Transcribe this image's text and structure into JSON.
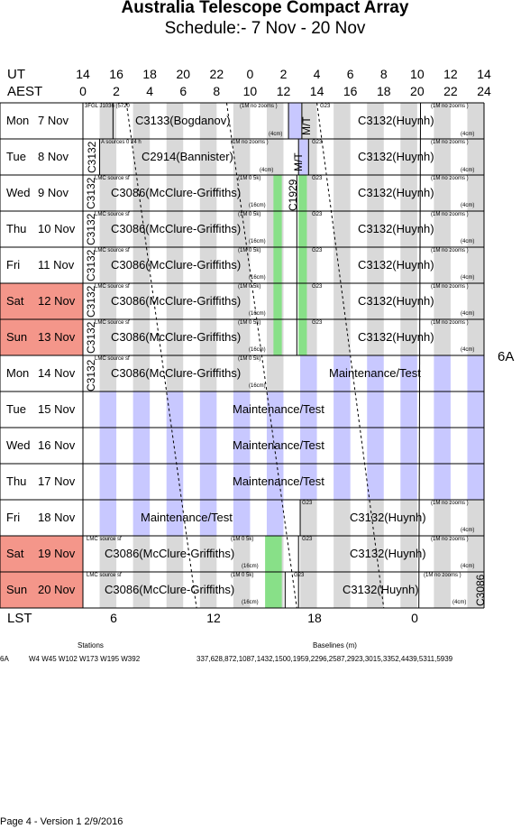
{
  "title": "Australia Telescope Compact Array",
  "subtitle": "Schedule:- 7  Nov - 20 Nov",
  "header": {
    "ut_label": "UT",
    "aest_label": "AEST",
    "ut_hours": [
      "14",
      "16",
      "18",
      "20",
      "22",
      "0",
      "2",
      "4",
      "6",
      "8",
      "10",
      "12",
      "14"
    ],
    "aest_hours": [
      "0",
      "2",
      "4",
      "6",
      "8",
      "10",
      "12",
      "14",
      "16",
      "18",
      "20",
      "22",
      "24"
    ]
  },
  "lst": {
    "label": "LST",
    "ticks": [
      "6",
      "12",
      "18",
      "0"
    ]
  },
  "config": "6A",
  "days": [
    {
      "name": "Mon",
      "date": "7 Nov",
      "weekend": false
    },
    {
      "name": "Tue",
      "date": "8 Nov",
      "weekend": false
    },
    {
      "name": "Wed",
      "date": "9 Nov",
      "weekend": false
    },
    {
      "name": "Thu",
      "date": "10 Nov",
      "weekend": false
    },
    {
      "name": "Fri",
      "date": "11 Nov",
      "weekend": false
    },
    {
      "name": "Sat",
      "date": "12 Nov",
      "weekend": true
    },
    {
      "name": "Sun",
      "date": "13 Nov",
      "weekend": true
    },
    {
      "name": "Mon",
      "date": "14 Nov",
      "weekend": false
    },
    {
      "name": "Tue",
      "date": "15 Nov",
      "weekend": false
    },
    {
      "name": "Wed",
      "date": "16 Nov",
      "weekend": false
    },
    {
      "name": "Thu",
      "date": "17 Nov",
      "weekend": false
    },
    {
      "name": "Fri",
      "date": "18 Nov",
      "weekend": false
    },
    {
      "name": "Sat",
      "date": "19 Nov",
      "weekend": true
    },
    {
      "name": "Sun",
      "date": "20 Nov",
      "weekend": true
    }
  ],
  "texts": {
    "c3133": "C3133(Bogdanov)",
    "c3132": "C3132(Huynh)",
    "c2914": "C2914(Bannister)",
    "c3086": "C3086(McClure-Griffiths)",
    "maint": "Maintenance/Test",
    "mt": "M/T",
    "c1929": "C1929",
    "c3132_short": "C3132",
    "c3086_short": "C3086",
    "n_3fgl": "3FGL J1036 (5720",
    "n_a_sources": "A  sources 0 24 h",
    "n_lmc": "LMC source  sf",
    "n_1m_zooms": "(1M no zooms )",
    "n_1m_05k": "(1M 0 5k)",
    "n_4cm": "(4cm)",
    "n_16cm": "(16cm)",
    "n_g23": "G23"
  },
  "footer": {
    "stations_label": "Stations",
    "baselines_label": "Baselines (m)",
    "config": "6A",
    "stations": "W4 W45 W102 W173 W195 W392",
    "baselines": "337,628,872,1087,1432,1500,1959,2296,2587,2923,3015,3352,4439,5311,5939",
    "page_info": "Page 4 - Version 1  2/9/2016"
  },
  "colors": {
    "weekend": "#f4968a",
    "grey_stripe": "#d9d9d9",
    "maint_stripe": "#c8c8ff",
    "green": "#88e088",
    "mt_blue": "#c8c8ff"
  }
}
